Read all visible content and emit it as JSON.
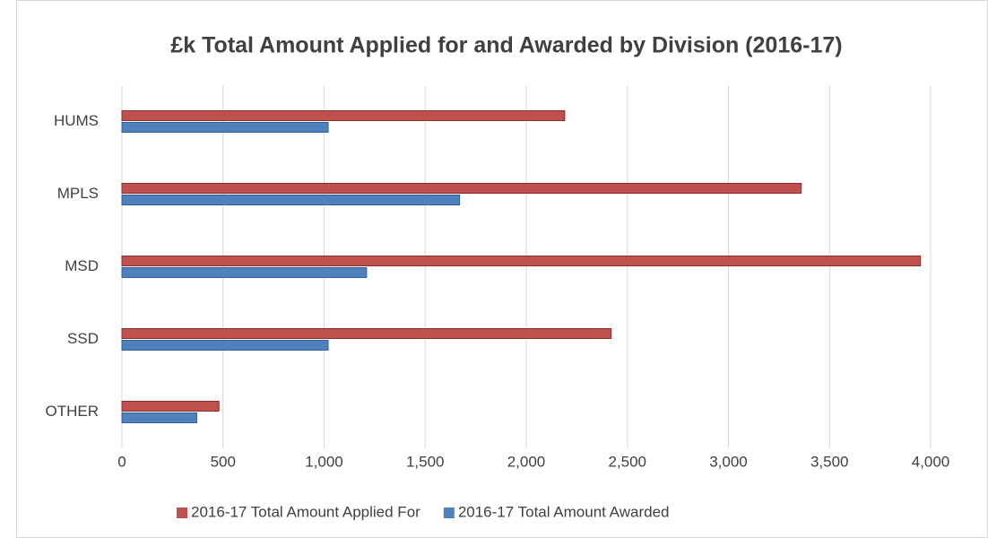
{
  "chart_data": {
    "type": "bar",
    "orientation": "horizontal",
    "title": "£k   Total Amount Applied for and Awarded by Division (2016-17)",
    "categories": [
      "HUMS",
      "MPLS",
      "MSD",
      "SSD",
      "OTHER"
    ],
    "series": [
      {
        "name": "2016-17 Total Amount Applied For",
        "color": "#c0504d",
        "values": [
          2190,
          3360,
          3950,
          2420,
          480
        ]
      },
      {
        "name": "2016-17 Total Amount Awarded",
        "color": "#4f81bd",
        "values": [
          1020,
          1670,
          1210,
          1020,
          370
        ]
      }
    ],
    "xlim": [
      0,
      4000
    ],
    "xticks": [
      0,
      500,
      {
        "value": 1000,
        "label": "1,000"
      },
      {
        "value": 1500,
        "label": "1,500"
      },
      {
        "value": 2000,
        "label": "2,000"
      },
      {
        "value": 2500,
        "label": "2,500"
      },
      {
        "value": 3000,
        "label": "3,000"
      },
      {
        "value": 3500,
        "label": "3,500"
      },
      {
        "value": 4000,
        "label": "4,000"
      }
    ],
    "grid": true,
    "legend": "bottom"
  }
}
